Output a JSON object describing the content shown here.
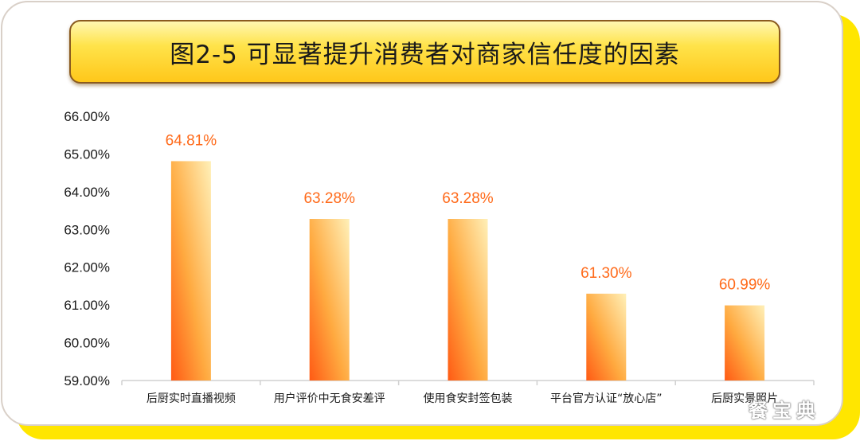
{
  "title": "图2-5 可显著提升消费者对商家信任度的因素",
  "watermark": "餐宝典",
  "colors": {
    "bar_top": "#ffe9a8",
    "bar_mid": "#ffb347",
    "bar_bottom": "#ff6a1a",
    "data_label": "#ff6a1a",
    "frame_accent": "#ffe600"
  },
  "chart_data": {
    "type": "bar",
    "categories": [
      "后厨实时直播视频",
      "用户评价中无食安差评",
      "使用食安封签包装",
      "平台官方认证“放心店”",
      "后厨实景照片"
    ],
    "values": [
      64.81,
      63.28,
      63.28,
      61.3,
      60.99
    ],
    "data_labels": [
      "64.81%",
      "63.28%",
      "63.28%",
      "61.30%",
      "60.99%"
    ],
    "ylim": [
      59,
      66
    ],
    "yticks": [
      "59.00%",
      "60.00%",
      "61.00%",
      "62.00%",
      "63.00%",
      "64.00%",
      "65.00%",
      "66.00%"
    ],
    "grid": false,
    "xlabel": "",
    "ylabel": ""
  }
}
